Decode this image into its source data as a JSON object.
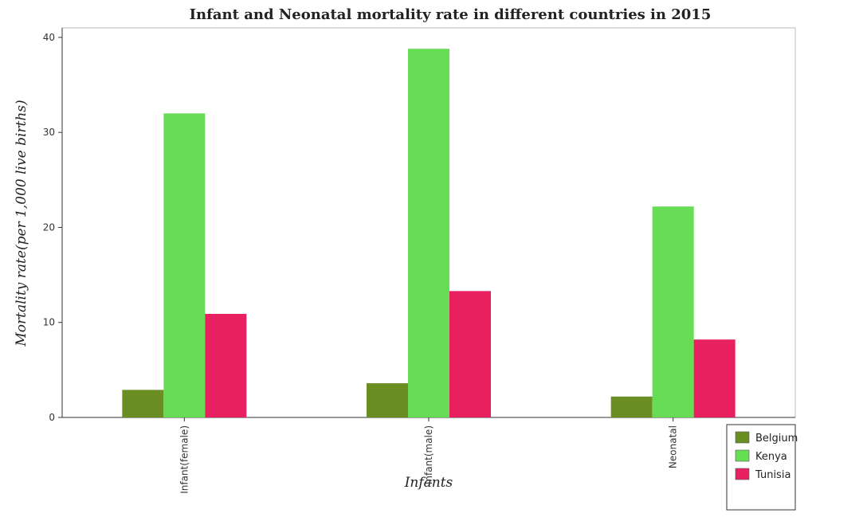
{
  "chart_data": {
    "type": "bar",
    "title": "Infant and Neonatal mortality rate in different countries in 2015",
    "xlabel": "Infants",
    "ylabel": "Mortality rate(per 1,000 live births)",
    "categories": [
      "Infant(female)",
      "Infant(male)",
      "Neonatal"
    ],
    "series": [
      {
        "name": "Belgium",
        "color": "#6b8e23",
        "values": [
          2.9,
          3.6,
          2.2
        ]
      },
      {
        "name": "Kenya",
        "color": "#66dd55",
        "values": [
          32.0,
          38.8,
          22.2
        ]
      },
      {
        "name": "Tunisia",
        "color": "#e8205f",
        "values": [
          10.9,
          13.3,
          8.2
        ]
      }
    ],
    "ylim": [
      0,
      41
    ],
    "yticks": [
      0,
      10,
      20,
      30,
      40
    ],
    "grid": false,
    "legend_position": "bottom-right"
  }
}
